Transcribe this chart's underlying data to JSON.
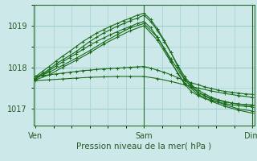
{
  "title": "",
  "xlabel": "Pression niveau de la mer( hPa )",
  "ylabel": "",
  "background_color": "#cce8e8",
  "grid_color": "#99cccc",
  "line_color": "#1a6b1a",
  "xtick_labels": [
    "Ven",
    "Sam",
    "Dim"
  ],
  "xtick_positions": [
    0,
    48,
    96
  ],
  "ylim": [
    1016.6,
    1019.5
  ],
  "xlim": [
    -1,
    97
  ],
  "ytick_values": [
    1017,
    1018,
    1019
  ],
  "lines": [
    [
      0,
      1017.75,
      3,
      1017.85,
      6,
      1017.95,
      9,
      1018.08,
      12,
      1018.18,
      15,
      1018.28,
      18,
      1018.38,
      21,
      1018.5,
      24,
      1018.62,
      27,
      1018.72,
      30,
      1018.82,
      33,
      1018.9,
      36,
      1018.98,
      39,
      1019.05,
      42,
      1019.12,
      45,
      1019.18,
      48,
      1019.25,
      51,
      1019.1,
      54,
      1018.88,
      57,
      1018.62,
      60,
      1018.35,
      63,
      1018.05,
      66,
      1017.78,
      69,
      1017.58,
      72,
      1017.45,
      75,
      1017.36,
      78,
      1017.28,
      81,
      1017.22,
      84,
      1017.18,
      87,
      1017.14,
      90,
      1017.12,
      93,
      1017.1,
      96,
      1017.08
    ],
    [
      0,
      1017.78,
      3,
      1017.9,
      6,
      1018.02,
      9,
      1018.15,
      12,
      1018.27,
      15,
      1018.38,
      18,
      1018.5,
      21,
      1018.62,
      24,
      1018.72,
      27,
      1018.82,
      30,
      1018.9,
      33,
      1018.98,
      36,
      1019.05,
      39,
      1019.12,
      42,
      1019.18,
      45,
      1019.25,
      48,
      1019.3,
      51,
      1019.15,
      54,
      1018.92,
      57,
      1018.65,
      60,
      1018.35,
      63,
      1018.02,
      66,
      1017.72,
      69,
      1017.52,
      72,
      1017.4,
      75,
      1017.32,
      78,
      1017.25,
      81,
      1017.2,
      84,
      1017.17,
      87,
      1017.14,
      90,
      1017.12,
      93,
      1017.1,
      96,
      1017.1
    ],
    [
      0,
      1017.72,
      3,
      1017.82,
      6,
      1017.92,
      9,
      1018.03,
      12,
      1018.13,
      15,
      1018.23,
      18,
      1018.33,
      21,
      1018.43,
      24,
      1018.53,
      27,
      1018.62,
      30,
      1018.7,
      33,
      1018.78,
      36,
      1018.85,
      39,
      1018.92,
      42,
      1018.98,
      45,
      1019.05,
      48,
      1019.1,
      51,
      1018.95,
      54,
      1018.72,
      57,
      1018.45,
      60,
      1018.15,
      63,
      1017.85,
      66,
      1017.6,
      69,
      1017.42,
      72,
      1017.32,
      75,
      1017.25,
      78,
      1017.2,
      81,
      1017.16,
      84,
      1017.13,
      87,
      1017.1,
      90,
      1017.08,
      93,
      1017.06,
      96,
      1017.05
    ],
    [
      0,
      1017.75,
      6,
      1017.88,
      12,
      1018.05,
      18,
      1018.22,
      24,
      1018.4,
      30,
      1018.6,
      36,
      1018.78,
      42,
      1018.95,
      48,
      1019.05,
      54,
      1018.72,
      60,
      1018.2,
      66,
      1017.7,
      72,
      1017.4,
      78,
      1017.22,
      84,
      1017.1,
      90,
      1017.0,
      96,
      1016.95
    ],
    [
      0,
      1017.7,
      6,
      1017.82,
      12,
      1018.0,
      18,
      1018.17,
      24,
      1018.35,
      30,
      1018.55,
      36,
      1018.72,
      42,
      1018.88,
      48,
      1019.0,
      54,
      1018.65,
      60,
      1018.12,
      66,
      1017.62,
      72,
      1017.35,
      78,
      1017.18,
      84,
      1017.06,
      90,
      1016.97,
      96,
      1016.9
    ],
    [
      0,
      1017.78,
      3,
      1017.8,
      6,
      1017.82,
      9,
      1017.84,
      12,
      1017.86,
      15,
      1017.88,
      18,
      1017.9,
      21,
      1017.92,
      24,
      1017.93,
      27,
      1017.95,
      30,
      1017.96,
      33,
      1017.97,
      36,
      1017.98,
      39,
      1017.99,
      42,
      1018.0,
      45,
      1018.01,
      48,
      1018.02,
      51,
      1017.98,
      54,
      1017.93,
      57,
      1017.88,
      60,
      1017.82,
      63,
      1017.75,
      66,
      1017.68,
      69,
      1017.63,
      72,
      1017.58,
      75,
      1017.53,
      78,
      1017.49,
      81,
      1017.45,
      84,
      1017.42,
      87,
      1017.4,
      90,
      1017.38,
      93,
      1017.36,
      96,
      1017.35
    ],
    [
      0,
      1017.68,
      6,
      1017.7,
      12,
      1017.72,
      18,
      1017.74,
      24,
      1017.76,
      30,
      1017.77,
      36,
      1017.78,
      42,
      1017.78,
      48,
      1017.78,
      54,
      1017.73,
      60,
      1017.66,
      66,
      1017.58,
      72,
      1017.5,
      78,
      1017.43,
      84,
      1017.37,
      90,
      1017.32,
      96,
      1017.28
    ]
  ]
}
